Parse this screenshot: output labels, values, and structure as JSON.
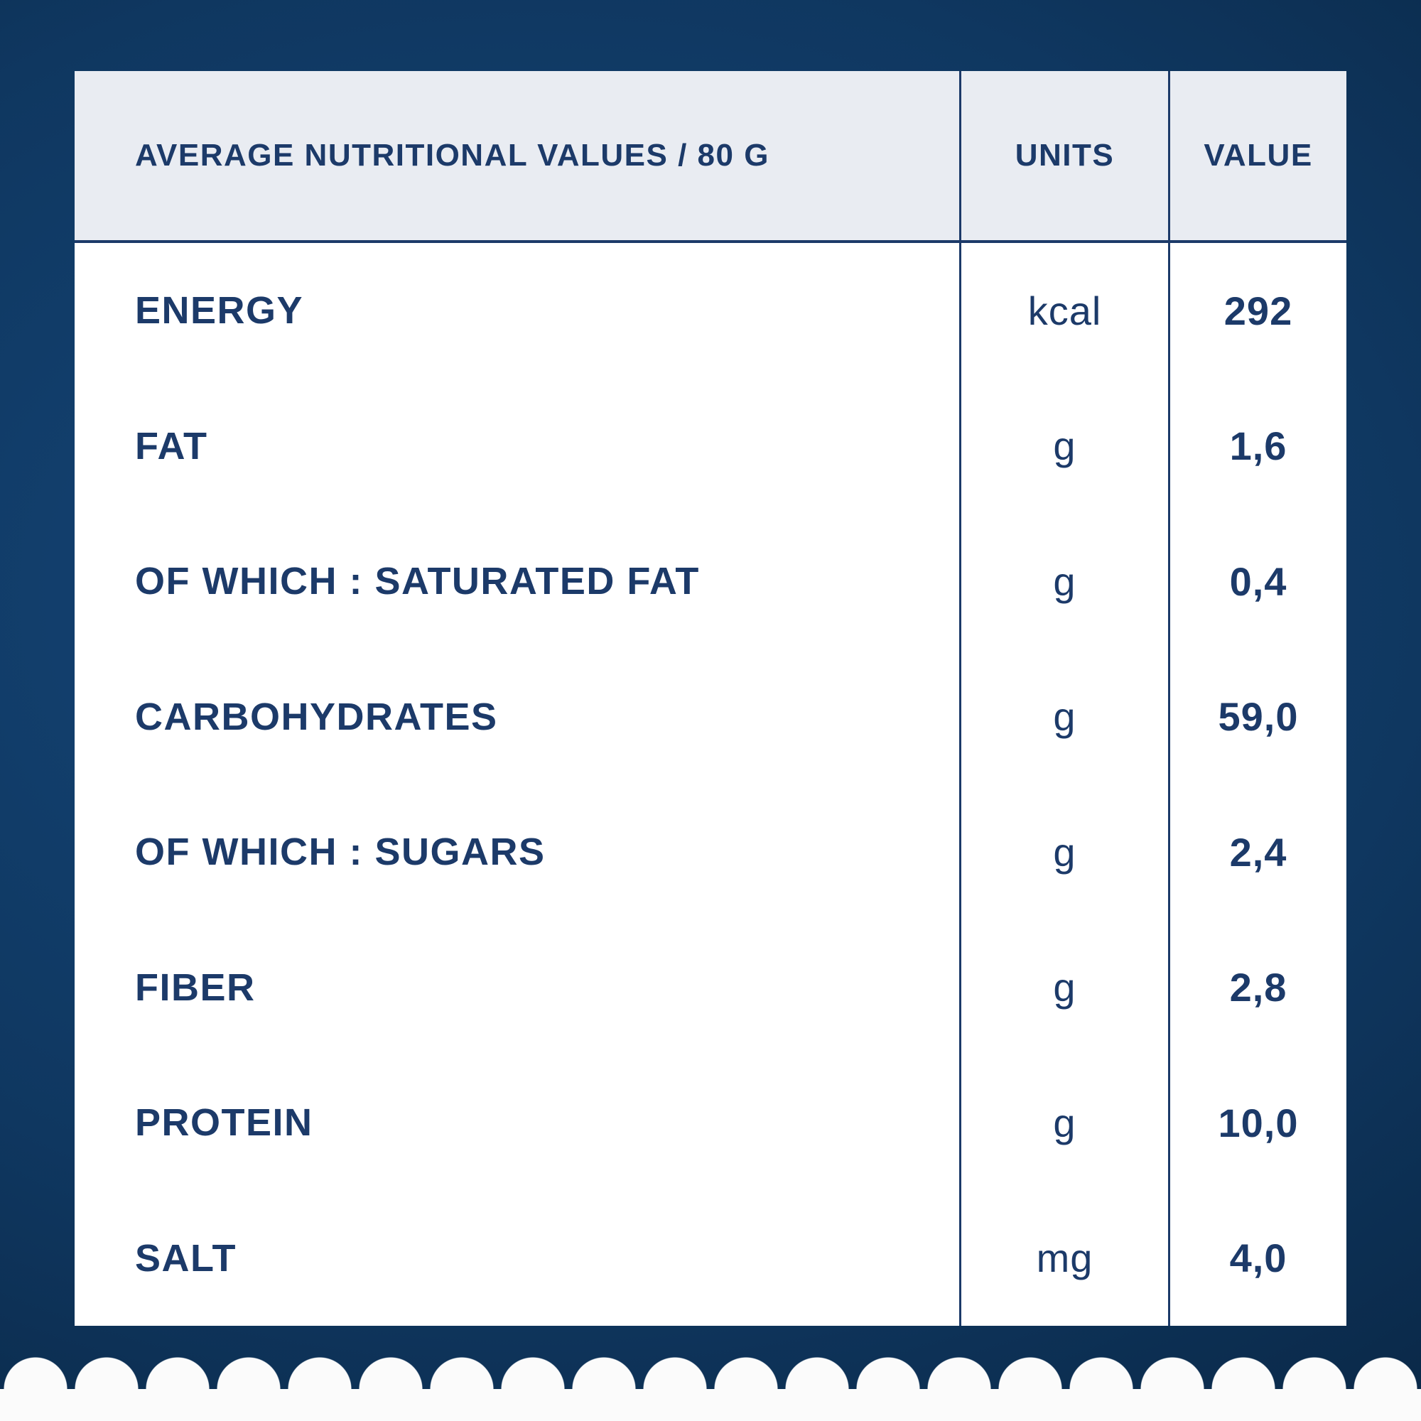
{
  "table": {
    "header": {
      "label": "AVERAGE NUTRITIONAL VALUES / 80 G",
      "units": "UNITS",
      "value": "VALUE"
    },
    "rows": [
      {
        "label": "ENERGY",
        "units": "kcal",
        "value": "292"
      },
      {
        "label": "FAT",
        "units": "g",
        "value": "1,6"
      },
      {
        "label": "OF WHICH : SATURATED FAT",
        "units": "g",
        "value": "0,4"
      },
      {
        "label": "CARBOHYDRATES",
        "units": "g",
        "value": "59,0"
      },
      {
        "label": "OF WHICH : SUGARS",
        "units": "g",
        "value": "2,4"
      },
      {
        "label": "FIBER",
        "units": "g",
        "value": "2,8"
      },
      {
        "label": "PROTEIN",
        "units": "g",
        "value": "10,0"
      },
      {
        "label": "SALT",
        "units": "mg",
        "value": "4,0"
      }
    ]
  },
  "colors": {
    "text_navy": "#1c3a69",
    "header_background": "#e9ecf2",
    "card_background": "#ffffff",
    "page_background_center": "#15477a",
    "page_background_edge": "#071d36",
    "scallop_edge": "#fbfbfb"
  }
}
